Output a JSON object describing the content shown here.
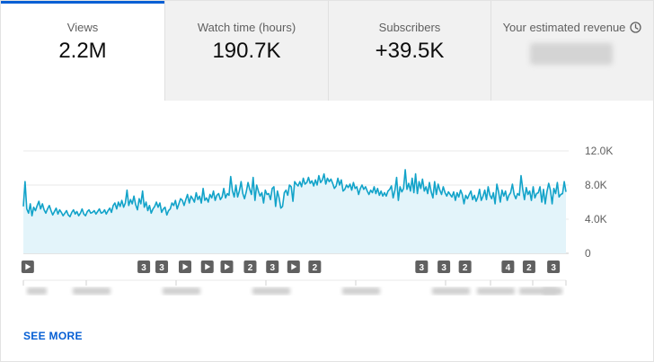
{
  "tabs": [
    {
      "label": "Views",
      "value": "2.2M",
      "active": true
    },
    {
      "label": "Watch time (hours)",
      "value": "190.7K",
      "active": false
    },
    {
      "label": "Subscribers",
      "value": "+39.5K",
      "active": false
    },
    {
      "label": "Your estimated revenue",
      "value": "",
      "active": false,
      "value_obscured": true
    }
  ],
  "accent_color": "#065fd4",
  "line_color": "#12a3c9",
  "fill_color": "#e3f4fa",
  "chart_data": {
    "type": "area",
    "ylim": [
      0,
      12000
    ],
    "y_ticks": [
      "12.0K",
      "8.0K",
      "4.0K",
      "0"
    ],
    "x_tick_labels_obscured": true,
    "x_tick_count": 9,
    "values": [
      5500,
      8400,
      5200,
      4700,
      5800,
      4400,
      5400,
      5000,
      5600,
      6100,
      5200,
      5800,
      5100,
      4700,
      5200,
      5600,
      5000,
      4500,
      4900,
      5300,
      4600,
      5100,
      4800,
      4400,
      4700,
      5000,
      4500,
      4300,
      4800,
      5100,
      4600,
      4900,
      4400,
      4700,
      5200,
      4600,
      4400,
      4900,
      5100,
      4700,
      4800,
      5000,
      4600,
      4900,
      5200,
      4700,
      4800,
      5100,
      4600,
      5000,
      5300,
      4800,
      5600,
      5900,
      5200,
      6000,
      5500,
      6200,
      5400,
      5900,
      7400,
      5600,
      6300,
      5800,
      6700,
      5700,
      5100,
      6400,
      5800,
      7300,
      5400,
      6000,
      5000,
      5600,
      4700,
      5200,
      5500,
      6000,
      5400,
      5900,
      4800,
      5200,
      5400,
      4500,
      5000,
      5200,
      5900,
      5600,
      6200,
      5200,
      5800,
      6400,
      6200,
      5600,
      6300,
      6900,
      5900,
      6700,
      6400,
      6000,
      7100,
      6300,
      6700,
      5900,
      7600,
      6200,
      6500,
      6000,
      6900,
      6500,
      7300,
      6200,
      6800,
      7000,
      6300,
      6600,
      7600,
      6500,
      7000,
      6800,
      9000,
      7300,
      6600,
      8000,
      6600,
      7300,
      8400,
      7000,
      6400,
      7200,
      8300,
      7500,
      6900,
      8900,
      6200,
      8000,
      7300,
      6700,
      7100,
      5900,
      7400,
      6900,
      7000,
      6300,
      7600,
      7800,
      5500,
      7300,
      6500,
      5300,
      5500,
      7100,
      7400,
      6800,
      8000,
      7800,
      6100,
      8400,
      8100,
      7900,
      8400,
      7800,
      8800,
      8100,
      8300,
      8900,
      8200,
      8500,
      7900,
      8600,
      8000,
      9100,
      8300,
      8600,
      9300,
      8100,
      8800,
      8400,
      8700,
      8200,
      7600,
      7900,
      8800,
      8000,
      8600,
      7300,
      7500,
      8000,
      7700,
      8100,
      7400,
      8300,
      7600,
      7800,
      6900,
      7600,
      8000,
      7500,
      7800,
      7300,
      6900,
      7400,
      7100,
      7800,
      7000,
      7600,
      6800,
      7300,
      6700,
      7100,
      6700,
      7300,
      7500,
      7900,
      6500,
      7400,
      8900,
      6200,
      7800,
      7200,
      7600,
      9800,
      7500,
      8200,
      7300,
      8800,
      7100,
      9300,
      7000,
      8400,
      7600,
      8700,
      7300,
      7800,
      7000,
      8300,
      7200,
      6500,
      8400,
      6900,
      8100,
      7400,
      6900,
      7800,
      7100,
      6700,
      7200,
      6900,
      6600,
      7200,
      6200,
      7100,
      6600,
      7400,
      6900,
      5800,
      6800,
      6400,
      6900,
      7300,
      6300,
      6800,
      6100,
      6600,
      7500,
      6200,
      6700,
      7400,
      6300,
      7800,
      6800,
      6400,
      7100,
      5800,
      8100,
      7200,
      6000,
      7400,
      6700,
      7300,
      6200,
      6800,
      7100,
      8100,
      6900,
      6400,
      7000,
      6800,
      9100,
      7500,
      6300,
      7700,
      6900,
      7300,
      6200,
      7800,
      6500,
      7000,
      7100,
      7800,
      6000,
      7500,
      5800,
      7200,
      8200,
      7400,
      5800,
      7600,
      7000,
      8300,
      6600,
      6900,
      7000,
      8400,
      7200
    ],
    "markers": [
      {
        "label": "▶",
        "pos": 0.008
      },
      {
        "label": "3",
        "pos": 0.222
      },
      {
        "label": "3",
        "pos": 0.255
      },
      {
        "label": "▶",
        "pos": 0.298
      },
      {
        "label": "▶",
        "pos": 0.339
      },
      {
        "label": "▶",
        "pos": 0.375
      },
      {
        "label": "2",
        "pos": 0.418
      },
      {
        "label": "3",
        "pos": 0.459
      },
      {
        "label": "▶",
        "pos": 0.498
      },
      {
        "label": "2",
        "pos": 0.537
      },
      {
        "label": "3",
        "pos": 0.734
      },
      {
        "label": "3",
        "pos": 0.775
      },
      {
        "label": "2",
        "pos": 0.814
      },
      {
        "label": "4",
        "pos": 0.893
      },
      {
        "label": "2",
        "pos": 0.932
      },
      {
        "label": "3",
        "pos": 0.977
      }
    ]
  },
  "see_more_label": "SEE MORE"
}
